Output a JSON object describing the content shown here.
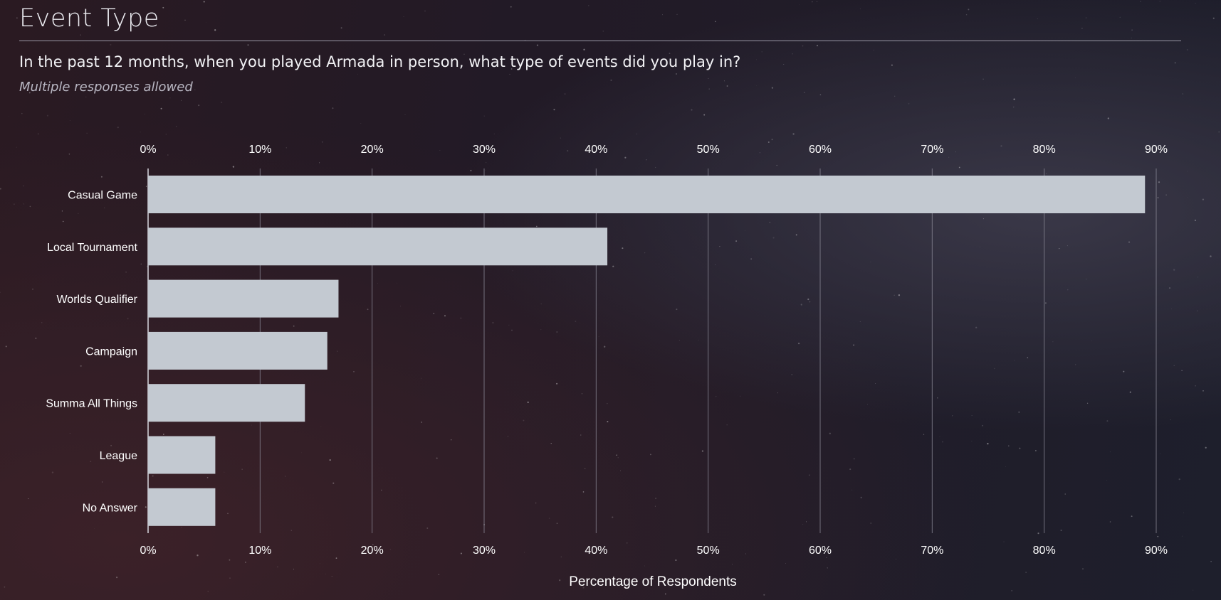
{
  "header": {
    "title": "Event Type",
    "question": "In the past 12 months, when you played Armada in person, what type of events did you play in?",
    "note": "Multiple responses allowed"
  },
  "colors": {
    "bar": "#c3c9d1",
    "gridline": "#8e8c9a",
    "text": "#ffffff"
  },
  "chart_data": {
    "type": "bar",
    "orientation": "horizontal",
    "categories": [
      "Casual Game",
      "Local Tournament",
      "Worlds Qualifier",
      "Campaign",
      "Summa All Things",
      "League",
      "No Answer"
    ],
    "values": [
      89,
      41,
      17,
      16,
      14,
      6,
      6
    ],
    "xlabel": "Percentage of Respondents",
    "xlim": [
      0,
      90
    ],
    "ticks": [
      "0%",
      "10%",
      "20%",
      "30%",
      "40%",
      "50%",
      "60%",
      "70%",
      "80%",
      "90%"
    ],
    "grid": true,
    "tick_labels_top_and_bottom": true
  }
}
